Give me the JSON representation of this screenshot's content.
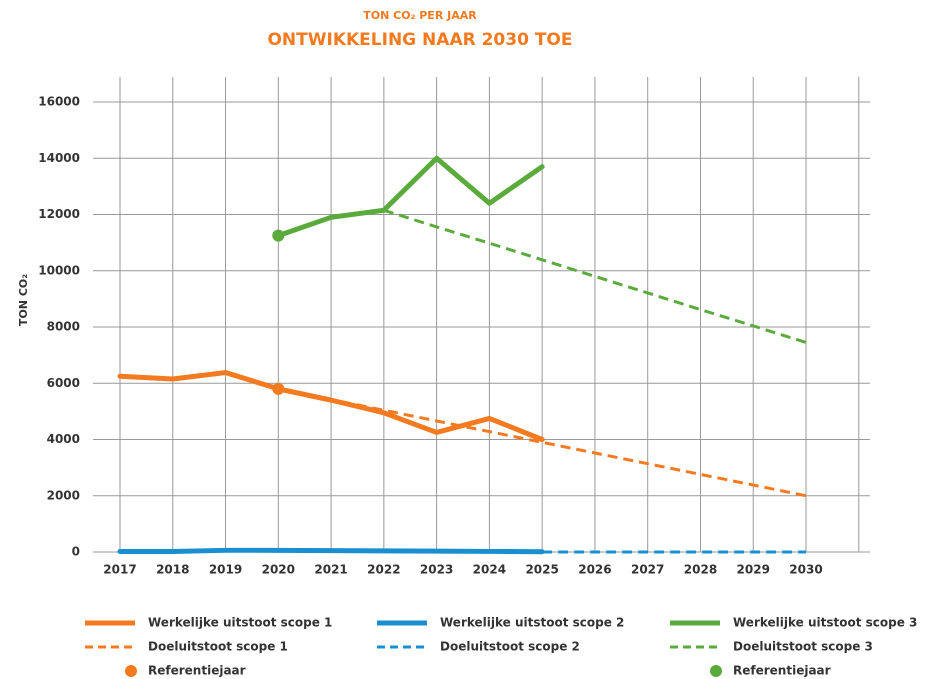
{
  "chart_data": {
    "type": "line",
    "subtitle": "TON CO₂ PER JAAR",
    "title": "ONTWIKKELING NAAR 2030 TOE",
    "ylabel": "TON CO₂",
    "categories": [
      "2017",
      "2018",
      "2019",
      "2020",
      "2021",
      "2022",
      "2023",
      "2024",
      "2025",
      "2026",
      "2027",
      "2028",
      "2029",
      "2030"
    ],
    "ylim": [
      0,
      16000
    ],
    "yticks": [
      0,
      2000,
      4000,
      6000,
      8000,
      10000,
      12000,
      14000,
      16000
    ],
    "grid": true,
    "legend": "bottom",
    "series": [
      {
        "name": "Werkelijke uitstoot scope 1",
        "color": "#f47a20",
        "style": "solid",
        "values": [
          6250,
          6150,
          6380,
          5800,
          5400,
          4950,
          4250,
          4750,
          4000,
          null,
          null,
          null,
          null,
          null
        ]
      },
      {
        "name": "Werkelijke uitstoot scope 2",
        "color": "#1a8fd0",
        "style": "solid",
        "values": [
          20,
          20,
          60,
          60,
          50,
          40,
          30,
          20,
          10,
          null,
          null,
          null,
          null,
          null
        ]
      },
      {
        "name": "Werkelijke uitstoot scope 3",
        "color": "#5aaa3c",
        "style": "solid",
        "values": [
          null,
          null,
          null,
          11250,
          11900,
          12150,
          14000,
          12400,
          13700,
          null,
          null,
          null,
          null,
          null
        ]
      },
      {
        "name": "Doeluitstoot scope 1",
        "color": "#f47a20",
        "style": "dashed",
        "values": [
          null,
          null,
          null,
          5800,
          5420,
          5040,
          4660,
          4280,
          3900,
          3520,
          3140,
          2760,
          2380,
          2000
        ]
      },
      {
        "name": "Doeluitstoot scope 2",
        "color": "#1a8fd0",
        "style": "dashed",
        "values": [
          null,
          null,
          null,
          null,
          null,
          null,
          null,
          null,
          0,
          0,
          0,
          0,
          0,
          0
        ]
      },
      {
        "name": "Doeluitstoot scope 3",
        "color": "#5aaa3c",
        "style": "dashed",
        "values": [
          null,
          null,
          null,
          null,
          null,
          12150,
          11560,
          10980,
          10390,
          9800,
          9210,
          8620,
          8040,
          7450
        ]
      },
      {
        "name": "Referentiejaar",
        "color": "#f47a20",
        "style": "point",
        "values": [
          null,
          null,
          null,
          5800,
          null,
          null,
          null,
          null,
          null,
          null,
          null,
          null,
          null,
          null
        ]
      },
      {
        "name": "Referentiejaar",
        "color": "#5aaa3c",
        "style": "point",
        "values": [
          null,
          null,
          null,
          11250,
          null,
          null,
          null,
          null,
          null,
          null,
          null,
          null,
          null,
          null
        ]
      }
    ]
  }
}
